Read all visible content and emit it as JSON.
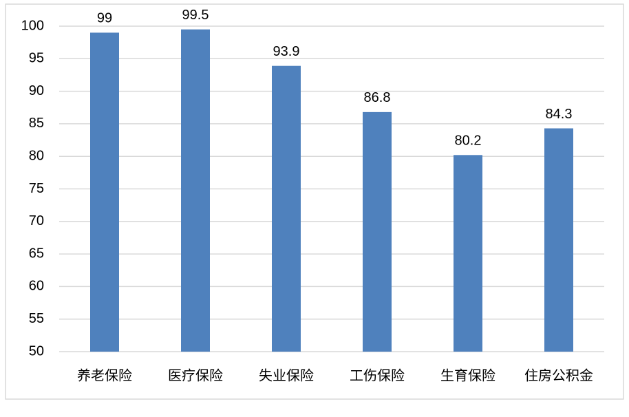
{
  "chart_data": {
    "type": "bar",
    "categories": [
      "养老保险",
      "医疗保险",
      "失业保险",
      "工伤保险",
      "生育保险",
      "住房公积金"
    ],
    "values": [
      99,
      99.5,
      93.9,
      86.8,
      80.2,
      84.3
    ],
    "color": "#4f81bd",
    "ylim": [
      50,
      100
    ],
    "yticks": [
      50,
      55,
      60,
      65,
      70,
      75,
      80,
      85,
      90,
      95,
      100
    ],
    "grid": true
  }
}
